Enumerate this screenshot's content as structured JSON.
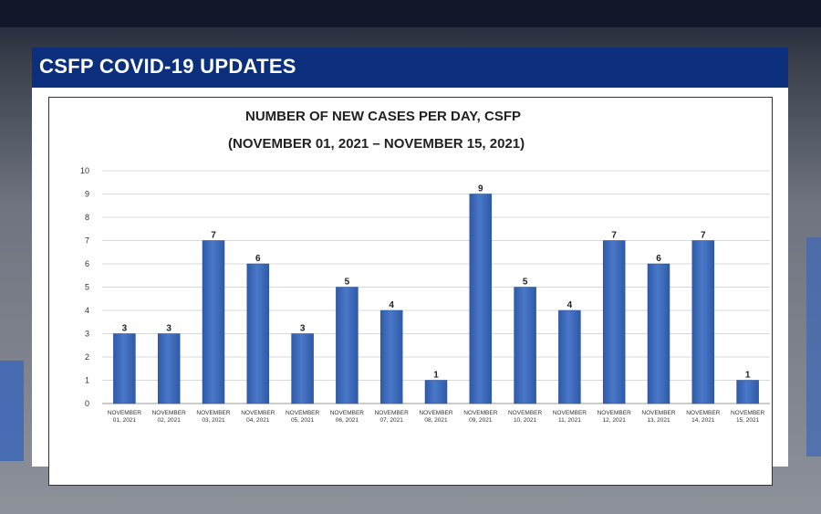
{
  "header": {
    "title": "CSFP COVID-19 UPDATES"
  },
  "colors": {
    "header_bg": "#0b2f7d",
    "bar": "#4a78c8",
    "bar_dark": "#2e5aa8"
  },
  "chart_data": {
    "type": "bar",
    "title": "NUMBER OF NEW CASES PER DAY, CSFP",
    "subtitle": "(NOVEMBER 01, 2021 – NOVEMBER 15, 2021)",
    "categories": [
      [
        "NOVEMBER",
        "01, 2021"
      ],
      [
        "NOVEMBER",
        "02, 2021"
      ],
      [
        "NOVEMBER",
        "03, 2021"
      ],
      [
        "NOVEMBER",
        "04, 2021"
      ],
      [
        "NOVEMBER",
        "05, 2021"
      ],
      [
        "NOVEMBER",
        "06, 2021"
      ],
      [
        "NOVEMBER",
        "07, 2021"
      ],
      [
        "NOVEMBER",
        "08, 2021"
      ],
      [
        "NOVEMBER",
        "09, 2021"
      ],
      [
        "NOVEMBER",
        "10, 2021"
      ],
      [
        "NOVEMBER",
        "11, 2021"
      ],
      [
        "NOVEMBER",
        "12, 2021"
      ],
      [
        "NOVEMBER",
        "13, 2021"
      ],
      [
        "NOVEMBER",
        "14, 2021"
      ],
      [
        "NOVEMBER",
        "15, 2021"
      ]
    ],
    "values": [
      3,
      3,
      7,
      6,
      3,
      5,
      4,
      1,
      9,
      5,
      4,
      7,
      6,
      7,
      1
    ],
    "ylim": [
      0,
      10
    ],
    "yticks": [
      0,
      1,
      2,
      3,
      4,
      5,
      6,
      7,
      8,
      9,
      10
    ],
    "grid": true,
    "data_labels": true
  }
}
